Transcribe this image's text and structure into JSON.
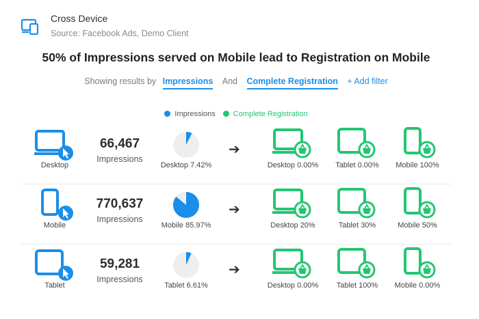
{
  "header": {
    "title": "Cross Device",
    "source": "Source: Facebook Ads, Demo Client"
  },
  "headline": "50% of Impressions served on Mobile lead to Registration on Mobile",
  "filters": {
    "prefix": "Showing results by",
    "first": "Impressions",
    "and": "And",
    "second": "Complete Registration",
    "add": "+ Add filter"
  },
  "legend": {
    "impressions": "Impressions",
    "registration": "Complete Registration"
  },
  "colors": {
    "accent_blue": "#1a8ee8",
    "accent_green": "#22c672",
    "pie_bg": "#eeeeee"
  },
  "rows": [
    {
      "device": "Desktop",
      "device_icon": "desktop-cursor-icon",
      "count": "66,467",
      "count_label": "Impressions",
      "share": 0.0742,
      "share_label": "Desktop 7.42%",
      "registrations": [
        {
          "label": "Desktop 0.00%",
          "icon": "desktop-basket-icon"
        },
        {
          "label": "Tablet 0.00%",
          "icon": "tablet-basket-icon"
        },
        {
          "label": "Mobile 100%",
          "icon": "mobile-basket-icon"
        }
      ]
    },
    {
      "device": "Mobile",
      "device_icon": "mobile-cursor-icon",
      "count": "770,637",
      "count_label": "Impressions",
      "share": 0.8597,
      "share_label": "Mobile 85.97%",
      "registrations": [
        {
          "label": "Desktop 20%",
          "icon": "desktop-basket-icon"
        },
        {
          "label": "Tablet 30%",
          "icon": "tablet-basket-icon"
        },
        {
          "label": "Mobile 50%",
          "icon": "mobile-basket-icon"
        }
      ]
    },
    {
      "device": "Tablet",
      "device_icon": "tablet-cursor-icon",
      "count": "59,281",
      "count_label": "Impressions",
      "share": 0.0661,
      "share_label": "Tablet 6.61%",
      "registrations": [
        {
          "label": "Desktop 0.00%",
          "icon": "desktop-basket-icon"
        },
        {
          "label": "Tablet 100%",
          "icon": "tablet-basket-icon"
        },
        {
          "label": "Mobile 0.00%",
          "icon": "mobile-basket-icon"
        }
      ]
    }
  ]
}
